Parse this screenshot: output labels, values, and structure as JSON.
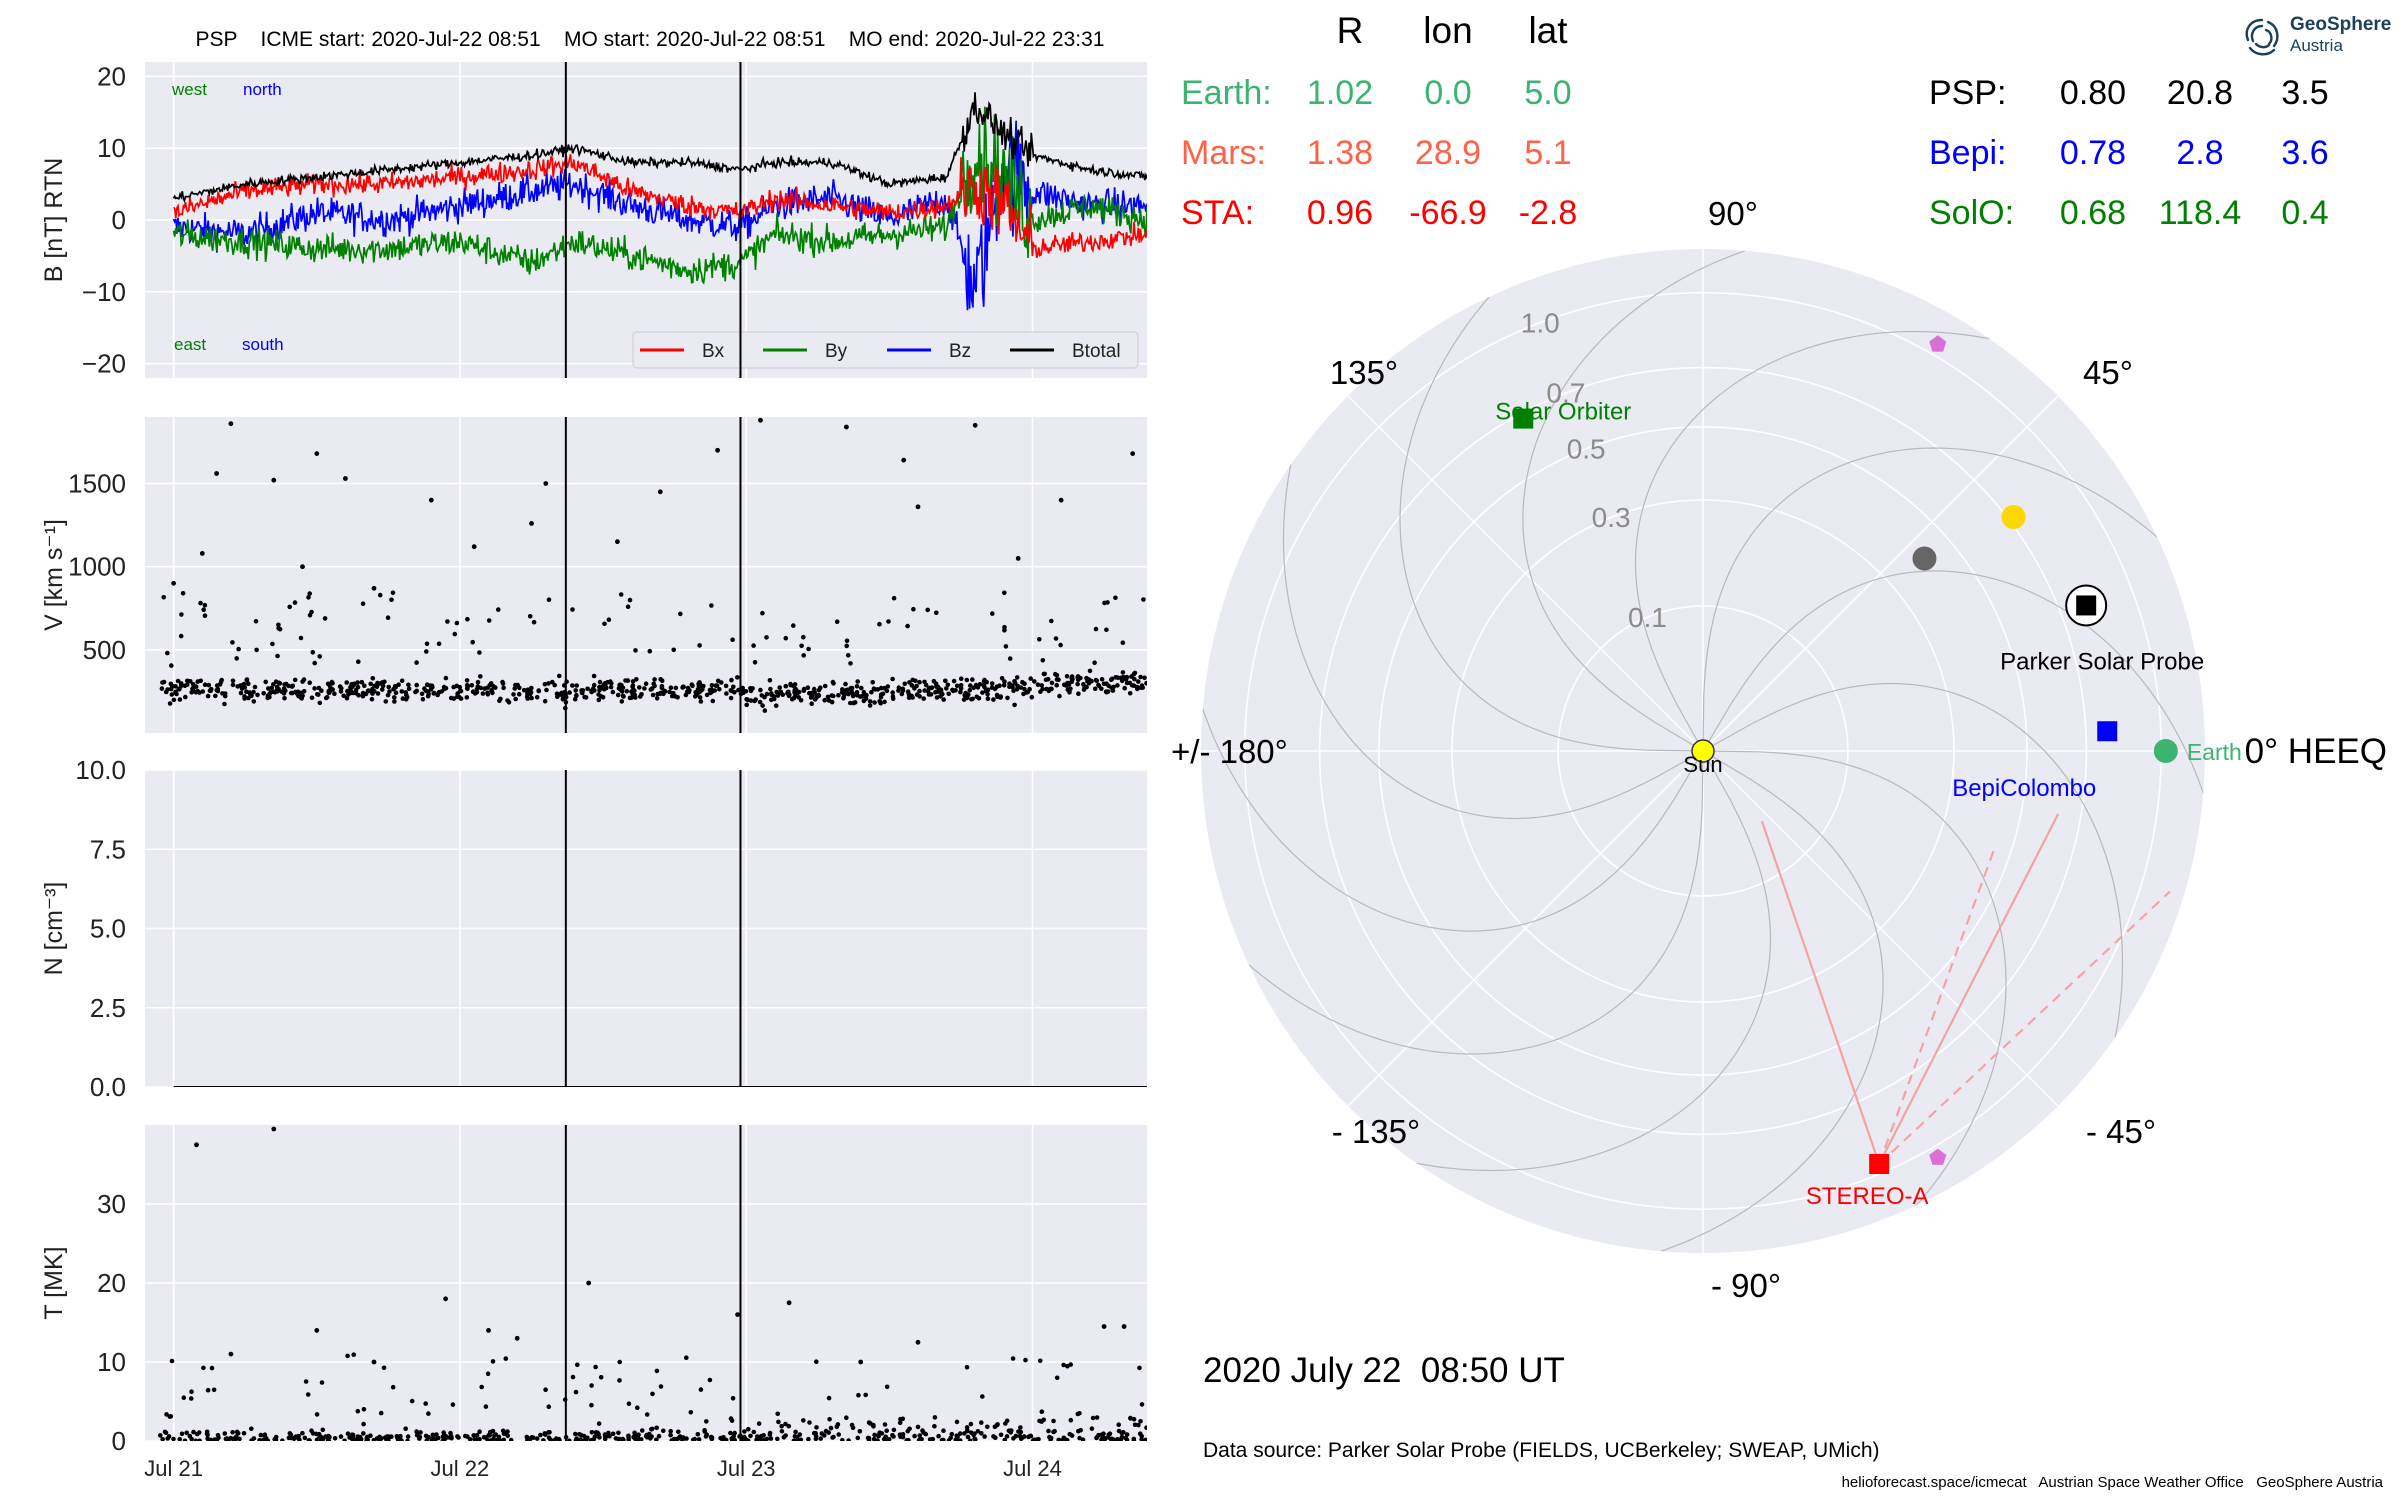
{
  "header": "PSP    ICME start: 2020-Jul-22 08:51    MO start: 2020-Jul-22 08:51    MO end: 2020-Jul-22 23:31",
  "logo": {
    "name": "GeoSphere",
    "sub": "Austria",
    "icon": "swirl-logo-icon"
  },
  "time_axis": {
    "ticks": [
      "Jul 21",
      "Jul 22",
      "Jul 23",
      "Jul 24"
    ],
    "tick_days": [
      0,
      1,
      2,
      3
    ],
    "range_days": [
      -0.1,
      3.4
    ],
    "markers_days": [
      1.37,
      1.98
    ]
  },
  "footer": {
    "timestamp": "2020 July 22  08:50 UT",
    "source": "Data source: Parker Solar Probe (FIELDS, UCBerkeley; SWEAP, UMich)",
    "credits": "helioforecast.space/icmecat   Austrian Space Weather Office   GeoSphere Austria"
  },
  "table": {
    "headers": [
      "R",
      "lon",
      "lat"
    ],
    "rows_left": [
      {
        "name": "Earth:",
        "R": "1.02",
        "lon": "0.0",
        "lat": "5.0",
        "color": "#3cb371"
      },
      {
        "name": "Mars:",
        "R": "1.38",
        "lon": "28.9",
        "lat": "5.1",
        "color": "#ff6347"
      },
      {
        "name": "STA:",
        "R": "0.96",
        "lon": "-66.9",
        "lat": "-2.8",
        "color": "#ff0000"
      }
    ],
    "rows_right": [
      {
        "name": "PSP:",
        "R": "0.80",
        "lon": "20.8",
        "lat": "3.5",
        "color": "#000000"
      },
      {
        "name": "Bepi:",
        "R": "0.78",
        "lon": "2.8",
        "lat": "3.6",
        "color": "#0000ff"
      },
      {
        "name": "SolO:",
        "R": "0.68",
        "lon": "118.4",
        "lat": "0.4",
        "color": "#008000"
      }
    ]
  },
  "chart_data": [
    {
      "type": "line",
      "panel": "B",
      "ylabel": "B [nT] RTN",
      "ylim": [
        -22,
        22
      ],
      "yticks": [
        "20",
        "10",
        "0",
        "−10",
        "−20"
      ],
      "ytick_values": [
        20,
        10,
        0,
        -10,
        -20
      ],
      "corner_labels": {
        "west": "west",
        "north": "north",
        "east": "east",
        "south": "south"
      },
      "legend_position": "lower-right",
      "series": [
        {
          "name": "Bx",
          "color": "#ff0000",
          "x": [
            0,
            0.25,
            0.5,
            0.75,
            1.0,
            1.25,
            1.4,
            1.6,
            1.8,
            1.98,
            2.1,
            2.3,
            2.5,
            2.7,
            2.8,
            2.9,
            3.0,
            3.2,
            3.4
          ],
          "y": [
            1,
            4,
            5,
            5,
            6,
            7,
            8,
            4,
            2,
            1,
            3,
            2,
            1,
            2,
            5,
            2,
            -4,
            -3,
            -2
          ]
        },
        {
          "name": "By",
          "color": "#008000",
          "x": [
            0,
            0.25,
            0.5,
            0.75,
            1.0,
            1.25,
            1.4,
            1.6,
            1.8,
            1.98,
            2.1,
            2.3,
            2.5,
            2.7,
            2.8,
            2.9,
            3.0,
            3.2,
            3.4
          ],
          "y": [
            -2,
            -3,
            -4,
            -4,
            -3,
            -6,
            -3,
            -5,
            -7,
            -6,
            -2,
            -3,
            -2,
            -1,
            10,
            6,
            0,
            2,
            0
          ]
        },
        {
          "name": "Bz",
          "color": "#0000ff",
          "x": [
            0,
            0.25,
            0.5,
            0.75,
            1.0,
            1.25,
            1.4,
            1.6,
            1.8,
            1.98,
            2.1,
            2.3,
            2.5,
            2.7,
            2.8,
            2.9,
            3.0,
            3.2,
            3.4
          ],
          "y": [
            -1,
            -2,
            1,
            0,
            2,
            4,
            5,
            2,
            0,
            -1,
            2,
            3,
            0,
            3,
            -10,
            8,
            4,
            2,
            2
          ]
        },
        {
          "name": "Btotal",
          "color": "#000000",
          "x": [
            0,
            0.25,
            0.5,
            0.75,
            1.0,
            1.25,
            1.4,
            1.6,
            1.8,
            1.98,
            2.1,
            2.3,
            2.5,
            2.7,
            2.8,
            2.9,
            3.0,
            3.2,
            3.4
          ],
          "y": [
            3,
            5,
            6,
            7,
            8,
            9,
            10,
            8,
            8,
            7,
            8,
            8,
            5,
            6,
            16,
            12,
            9,
            7,
            6
          ]
        }
      ]
    },
    {
      "type": "scatter",
      "panel": "V",
      "ylabel": "V [km s⁻¹]",
      "ylim": [
        0,
        1900
      ],
      "yticks": [
        "1500",
        "1000",
        "500"
      ],
      "ytick_values": [
        1500,
        1000,
        500
      ],
      "series": [
        {
          "name": "",
          "color": "#000000",
          "distribution": "dense band 150-450 km/s with sparse outliers up to 1860 km/s",
          "x": [
            0.0,
            0.2,
            0.5,
            0.9,
            1.3,
            1.55,
            1.9,
            2.05,
            2.35,
            2.55,
            2.8,
            3.1,
            3.35,
            0.35,
            0.6,
            0.45,
            1.05,
            1.25,
            0.15,
            2.6,
            2.95,
            1.7,
            0.7,
            0.1
          ],
          "y": [
            900,
            1860,
            1680,
            1400,
            1500,
            1150,
            1700,
            1880,
            1840,
            1640,
            1850,
            1400,
            1680,
            1520,
            1530,
            1000,
            1120,
            1260,
            1560,
            1360,
            1050,
            1450,
            870,
            1080
          ]
        }
      ]
    },
    {
      "type": "line",
      "panel": "N",
      "ylabel": "N [cm⁻³]",
      "ylim": [
        0,
        10
      ],
      "yticks": [
        "10.0",
        "7.5",
        "5.0",
        "2.5",
        "0.0"
      ],
      "ytick_values": [
        10,
        7.5,
        5,
        2.5,
        0
      ],
      "series": [
        {
          "name": "",
          "color": "#000000",
          "x": [
            0,
            3.4
          ],
          "y": [
            0,
            0
          ]
        }
      ]
    },
    {
      "type": "scatter",
      "panel": "T",
      "ylabel": "T [MK]",
      "ylim": [
        0,
        40
      ],
      "yticks": [
        "30",
        "20",
        "10",
        "0"
      ],
      "ytick_values": [
        30,
        20,
        10,
        0
      ],
      "series": [
        {
          "name": "",
          "color": "#000000",
          "distribution": "mostly near 0-3 MK with sparse points up to 38 MK",
          "x": [
            0.08,
            0.35,
            0.95,
            1.1,
            1.45,
            1.97,
            2.15,
            2.6,
            3.25,
            3.32,
            0.5,
            0.2,
            0.7,
            1.2,
            2.4
          ],
          "y": [
            37.5,
            39.5,
            18,
            14,
            20,
            16,
            17.5,
            12.5,
            14.5,
            14.5,
            14,
            11,
            10,
            13,
            10
          ]
        }
      ]
    },
    {
      "type": "scatter",
      "panel": "polar",
      "title": "",
      "angle_labels": [
        {
          "text": "0° HEEQ",
          "deg": 0
        },
        {
          "text": "45°",
          "deg": 45
        },
        {
          "text": "90°",
          "deg": 90
        },
        {
          "text": "135°",
          "deg": 135
        },
        {
          "text": "+/- 180°",
          "deg": 180
        },
        {
          "text": "- 135°",
          "deg": -135
        },
        {
          "text": "- 90°",
          "deg": -90
        },
        {
          "text": "- 45°",
          "deg": -45
        }
      ],
      "r_ticks": [
        {
          "label": "0.1",
          "r": 0.1
        },
        {
          "label": "0.3",
          "r": 0.3
        },
        {
          "label": "0.5",
          "r": 0.5
        },
        {
          "label": "0.7",
          "r": 0.7
        },
        {
          "label": "1.0",
          "r": 1.0
        }
      ],
      "rlim": [
        0,
        1.2
      ],
      "bodies": [
        {
          "name": "Sun",
          "label": "Sun",
          "r": 0.0,
          "lon": 0.0,
          "color": "#ffff00",
          "marker": "circle"
        },
        {
          "name": "Earth",
          "label": "Earth",
          "r": 1.02,
          "lon": 0.0,
          "color": "#3cb371",
          "marker": "circle"
        },
        {
          "name": "Mars",
          "label": "",
          "r": 1.38,
          "lon": 28.9,
          "color": "#ff6347",
          "marker": "circle"
        },
        {
          "name": "STEREO-A",
          "label": "STEREO-A",
          "r": 0.96,
          "lon": -66.9,
          "color": "#ff0000",
          "marker": "square"
        },
        {
          "name": "Parker Solar Probe",
          "label": "Parker Solar Probe",
          "r": 0.8,
          "lon": 20.8,
          "color": "#000000",
          "marker": "square-ring"
        },
        {
          "name": "BepiColombo",
          "label": "BepiColombo",
          "r": 0.78,
          "lon": 2.8,
          "color": "#0000ff",
          "marker": "square"
        },
        {
          "name": "Solar Orbiter",
          "label": "Solar Orbiter",
          "r": 0.68,
          "lon": 118.4,
          "color": "#008000",
          "marker": "square"
        },
        {
          "name": "Venus",
          "label": "",
          "r": 0.72,
          "lon": 37.0,
          "color": "#ffd700",
          "marker": "circle"
        },
        {
          "name": "Mercury",
          "label": "",
          "r": 0.41,
          "lon": 41.0,
          "color": "#666666",
          "marker": "circle"
        },
        {
          "name": "L4",
          "label": "",
          "r": 1.05,
          "lon": 60.0,
          "color": "#da70d6",
          "marker": "pentagon"
        },
        {
          "name": "L5",
          "label": "",
          "r": 1.05,
          "lon": -60.0,
          "color": "#da70d6",
          "marker": "pentagon"
        }
      ]
    }
  ]
}
